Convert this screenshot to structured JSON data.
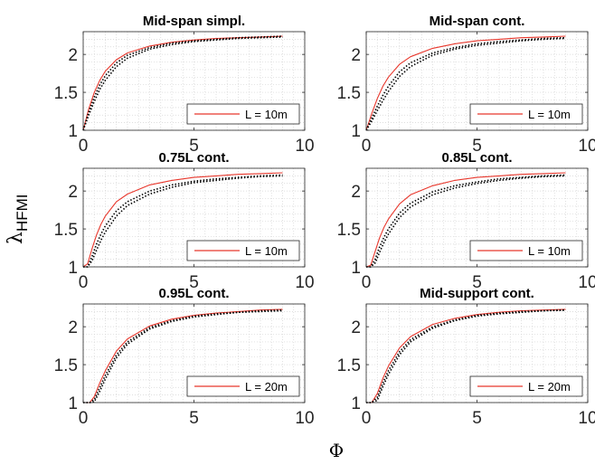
{
  "figure": {
    "ylabel_main": "λ",
    "ylabel_sub": "HFMI",
    "xlabel": "Φ"
  },
  "chart_data": [
    {
      "type": "line",
      "title": "Mid-span simpl.",
      "xlim": [
        0,
        10
      ],
      "ylim": [
        1,
        2.3
      ],
      "xticks": [
        "0",
        "5",
        "10"
      ],
      "yticks": [
        "1",
        "1.5",
        "2"
      ],
      "grid": true,
      "legend": "bottom-right",
      "legend_label": "L = 10m",
      "series": [
        {
          "name": "L = 10m",
          "color": "#e8372c",
          "style": "solid",
          "x": [
            0,
            0.25,
            0.5,
            0.75,
            1,
            1.5,
            2,
            3,
            4,
            5,
            6,
            7,
            8,
            9
          ],
          "y": [
            1.0,
            1.28,
            1.5,
            1.66,
            1.78,
            1.93,
            2.02,
            2.11,
            2.16,
            2.19,
            2.21,
            2.22,
            2.23,
            2.24
          ]
        },
        {
          "style": "dotted",
          "color": "#000000",
          "x": [
            0,
            0.25,
            0.5,
            0.75,
            1,
            1.5,
            2,
            3,
            4,
            5,
            6,
            7,
            8,
            9
          ],
          "y": [
            1.0,
            1.24,
            1.44,
            1.6,
            1.72,
            1.89,
            1.99,
            2.09,
            2.15,
            2.18,
            2.2,
            2.22,
            2.23,
            2.24
          ]
        },
        {
          "style": "dotted",
          "color": "#000000",
          "x": [
            0,
            0.25,
            0.5,
            0.75,
            1,
            1.5,
            2,
            3,
            4,
            5,
            6,
            7,
            8,
            9
          ],
          "y": [
            1.0,
            1.2,
            1.38,
            1.54,
            1.66,
            1.84,
            1.95,
            2.07,
            2.13,
            2.17,
            2.19,
            2.21,
            2.22,
            2.23
          ]
        }
      ]
    },
    {
      "type": "line",
      "title": "Mid-span cont.",
      "xlim": [
        0,
        10
      ],
      "ylim": [
        1,
        2.3
      ],
      "xticks": [
        "0",
        "5",
        "10"
      ],
      "yticks": [
        "1",
        "1.5",
        "2"
      ],
      "grid": true,
      "legend": "bottom-right",
      "legend_label": "L = 10m",
      "series": [
        {
          "name": "L = 10m",
          "color": "#e8372c",
          "style": "solid",
          "x": [
            0,
            0.25,
            0.5,
            0.75,
            1,
            1.5,
            2,
            3,
            4,
            5,
            6,
            7,
            8,
            9
          ],
          "y": [
            1.0,
            1.22,
            1.42,
            1.58,
            1.7,
            1.87,
            1.97,
            2.08,
            2.14,
            2.18,
            2.2,
            2.22,
            2.23,
            2.24
          ]
        },
        {
          "style": "dotted",
          "color": "#000000",
          "x": [
            0,
            0.25,
            0.5,
            0.75,
            1,
            1.5,
            2,
            3,
            4,
            5,
            6,
            7,
            8,
            9
          ],
          "y": [
            1.0,
            1.16,
            1.32,
            1.46,
            1.58,
            1.77,
            1.89,
            2.02,
            2.09,
            2.14,
            2.17,
            2.19,
            2.21,
            2.22
          ]
        },
        {
          "style": "dotted",
          "color": "#000000",
          "x": [
            0,
            0.25,
            0.5,
            0.75,
            1,
            1.5,
            2,
            3,
            4,
            5,
            6,
            7,
            8,
            9
          ],
          "y": [
            1.0,
            1.12,
            1.26,
            1.39,
            1.51,
            1.71,
            1.84,
            1.99,
            2.07,
            2.12,
            2.15,
            2.18,
            2.2,
            2.21
          ]
        }
      ]
    },
    {
      "type": "line",
      "title": "0.75L cont.",
      "xlim": [
        0,
        10
      ],
      "ylim": [
        1,
        2.3
      ],
      "xticks": [
        "0",
        "5",
        "10"
      ],
      "yticks": [
        "1",
        "1.5",
        "2"
      ],
      "grid": true,
      "legend": "bottom-right",
      "legend_label": "L = 10m",
      "series": [
        {
          "name": "L = 10m",
          "color": "#e8372c",
          "style": "solid",
          "x": [
            0,
            0.2,
            0.4,
            0.6,
            0.8,
            1,
            1.5,
            2,
            3,
            4,
            5,
            6,
            7,
            8,
            9
          ],
          "y": [
            1.0,
            1.04,
            1.24,
            1.42,
            1.56,
            1.67,
            1.86,
            1.96,
            2.08,
            2.14,
            2.18,
            2.2,
            2.22,
            2.23,
            2.24
          ]
        },
        {
          "style": "dotted",
          "color": "#000000",
          "x": [
            0,
            0.2,
            0.4,
            0.6,
            0.8,
            1,
            1.5,
            2,
            3,
            4,
            5,
            6,
            7,
            8,
            9
          ],
          "y": [
            1.0,
            1.0,
            1.14,
            1.3,
            1.43,
            1.54,
            1.74,
            1.86,
            2.0,
            2.08,
            2.13,
            2.16,
            2.18,
            2.2,
            2.21
          ]
        },
        {
          "style": "dotted",
          "color": "#000000",
          "x": [
            0,
            0.2,
            0.4,
            0.6,
            0.8,
            1,
            1.5,
            2,
            3,
            4,
            5,
            6,
            7,
            8,
            9
          ],
          "y": [
            1.0,
            1.0,
            1.08,
            1.22,
            1.35,
            1.46,
            1.67,
            1.81,
            1.96,
            2.05,
            2.11,
            2.14,
            2.17,
            2.19,
            2.2
          ]
        }
      ]
    },
    {
      "type": "line",
      "title": "0.85L cont.",
      "xlim": [
        0,
        10
      ],
      "ylim": [
        1,
        2.3
      ],
      "xticks": [
        "0",
        "5",
        "10"
      ],
      "yticks": [
        "1",
        "1.5",
        "2"
      ],
      "grid": true,
      "legend": "bottom-right",
      "legend_label": "L = 10m",
      "series": [
        {
          "name": "L = 10m",
          "color": "#e8372c",
          "style": "solid",
          "x": [
            0,
            0.2,
            0.4,
            0.6,
            0.8,
            1,
            1.5,
            2,
            3,
            4,
            5,
            6,
            7,
            8,
            9
          ],
          "y": [
            1.0,
            1.02,
            1.2,
            1.38,
            1.52,
            1.63,
            1.83,
            1.95,
            2.07,
            2.14,
            2.18,
            2.2,
            2.22,
            2.23,
            2.24
          ]
        },
        {
          "style": "dotted",
          "color": "#000000",
          "x": [
            0,
            0.2,
            0.4,
            0.6,
            0.8,
            1,
            1.5,
            2,
            3,
            4,
            5,
            6,
            7,
            8,
            9
          ],
          "y": [
            1.0,
            1.0,
            1.1,
            1.26,
            1.39,
            1.5,
            1.71,
            1.84,
            1.99,
            2.07,
            2.12,
            2.16,
            2.18,
            2.2,
            2.21
          ]
        },
        {
          "style": "dotted",
          "color": "#000000",
          "x": [
            0,
            0.2,
            0.4,
            0.6,
            0.8,
            1,
            1.5,
            2,
            3,
            4,
            5,
            6,
            7,
            8,
            9
          ],
          "y": [
            1.0,
            1.0,
            1.05,
            1.19,
            1.32,
            1.43,
            1.65,
            1.79,
            1.95,
            2.04,
            2.1,
            2.14,
            2.17,
            2.19,
            2.2
          ]
        }
      ]
    },
    {
      "type": "line",
      "title": "0.95L cont.",
      "xlim": [
        0,
        10
      ],
      "ylim": [
        1,
        2.3
      ],
      "xticks": [
        "0",
        "5",
        "10"
      ],
      "yticks": [
        "1",
        "1.5",
        "2"
      ],
      "grid": true,
      "legend": "bottom-right",
      "legend_label": "L = 20m",
      "series": [
        {
          "name": "L = 20m",
          "color": "#e8372c",
          "style": "solid",
          "x": [
            0,
            0.3,
            0.5,
            0.75,
            1,
            1.5,
            2,
            3,
            4,
            5,
            6,
            7,
            8,
            9
          ],
          "y": [
            1.0,
            1.0,
            1.08,
            1.26,
            1.42,
            1.68,
            1.84,
            2.01,
            2.1,
            2.15,
            2.18,
            2.2,
            2.22,
            2.23
          ]
        },
        {
          "style": "dotted",
          "color": "#000000",
          "x": [
            0,
            0.3,
            0.5,
            0.75,
            1,
            1.5,
            2,
            3,
            4,
            5,
            6,
            7,
            8,
            9
          ],
          "y": [
            1.0,
            1.0,
            1.04,
            1.2,
            1.36,
            1.63,
            1.8,
            1.99,
            2.08,
            2.14,
            2.17,
            2.19,
            2.21,
            2.22
          ]
        },
        {
          "style": "dotted",
          "color": "#000000",
          "x": [
            0,
            0.3,
            0.5,
            0.75,
            1,
            1.5,
            2,
            3,
            4,
            5,
            6,
            7,
            8,
            9
          ],
          "y": [
            1.0,
            1.0,
            1.01,
            1.15,
            1.31,
            1.59,
            1.77,
            1.97,
            2.07,
            2.13,
            2.16,
            2.19,
            2.2,
            2.21
          ]
        }
      ]
    },
    {
      "type": "line",
      "title": "Mid-support cont.",
      "xlim": [
        0,
        10
      ],
      "ylim": [
        1,
        2.3
      ],
      "xticks": [
        "0",
        "5",
        "10"
      ],
      "yticks": [
        "1",
        "1.5",
        "2"
      ],
      "grid": true,
      "legend": "bottom-right",
      "legend_label": "L = 20m",
      "series": [
        {
          "name": "L = 20m",
          "color": "#e8372c",
          "style": "solid",
          "x": [
            0,
            0.25,
            0.5,
            0.75,
            1,
            1.5,
            2,
            3,
            4,
            5,
            6,
            7,
            8,
            9
          ],
          "y": [
            1.0,
            1.0,
            1.12,
            1.32,
            1.48,
            1.72,
            1.87,
            2.03,
            2.11,
            2.16,
            2.19,
            2.21,
            2.22,
            2.23
          ]
        },
        {
          "style": "dotted",
          "color": "#000000",
          "x": [
            0,
            0.25,
            0.5,
            0.75,
            1,
            1.5,
            2,
            3,
            4,
            5,
            6,
            7,
            8,
            9
          ],
          "y": [
            1.0,
            1.0,
            1.07,
            1.26,
            1.42,
            1.67,
            1.83,
            2.0,
            2.09,
            2.15,
            2.18,
            2.2,
            2.21,
            2.22
          ]
        },
        {
          "style": "dotted",
          "color": "#000000",
          "x": [
            0,
            0.25,
            0.5,
            0.75,
            1,
            1.5,
            2,
            3,
            4,
            5,
            6,
            7,
            8,
            9
          ],
          "y": [
            1.0,
            1.0,
            1.03,
            1.21,
            1.37,
            1.63,
            1.8,
            1.98,
            2.08,
            2.14,
            2.17,
            2.19,
            2.21,
            2.22
          ]
        }
      ]
    }
  ]
}
